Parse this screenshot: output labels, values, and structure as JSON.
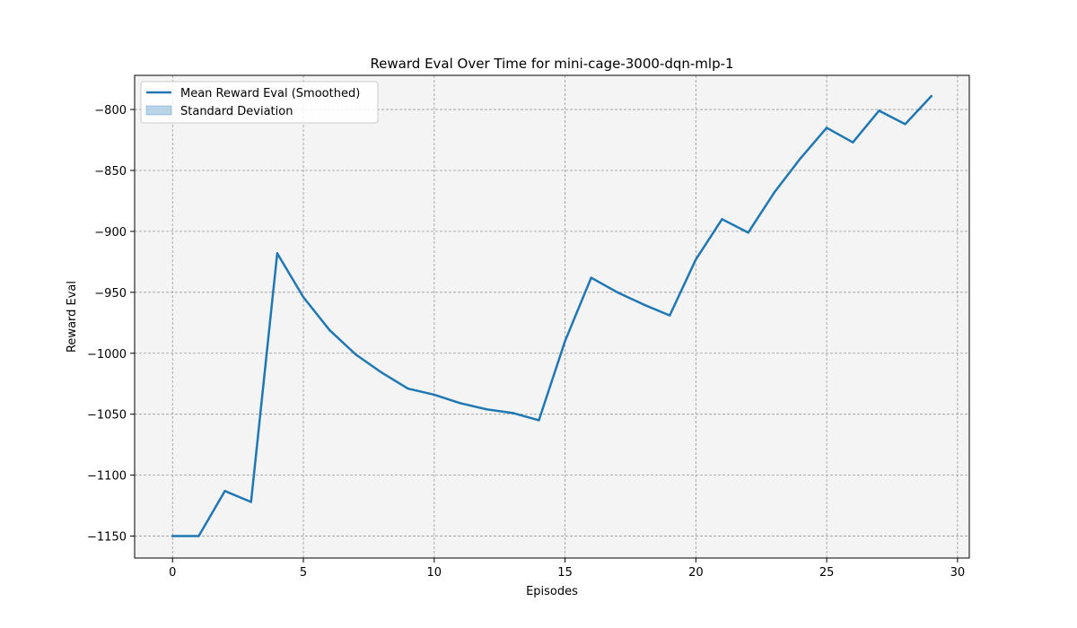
{
  "chart_data": {
    "type": "line",
    "title": "Reward Eval Over Time for mini-cage-3000-dqn-mlp-1",
    "xlabel": "Episodes",
    "ylabel": "Reward Eval",
    "xlim": [
      -1.45,
      30.45
    ],
    "ylim": [
      -1168,
      -772
    ],
    "xticks": [
      0,
      5,
      10,
      15,
      20,
      25,
      30
    ],
    "yticks": [
      -1150,
      -1100,
      -1050,
      -1000,
      -950,
      -900,
      -850,
      -800
    ],
    "xtick_labels": [
      "0",
      "5",
      "10",
      "15",
      "20",
      "25",
      "30"
    ],
    "ytick_labels": [
      "−1150",
      "−1100",
      "−1050",
      "−1000",
      "−950",
      "−900",
      "−850",
      "−800"
    ],
    "grid": true,
    "legend_position": "upper-left",
    "background": "#f4f4f4",
    "series": [
      {
        "name": "Mean Reward Eval (Smoothed)",
        "color": "#1f77b4",
        "x": [
          0,
          1,
          2,
          3,
          4,
          5,
          6,
          7,
          8,
          9,
          10,
          11,
          12,
          13,
          14,
          15,
          16,
          17,
          18,
          19,
          20,
          21,
          22,
          23,
          24,
          25,
          26,
          27,
          28,
          29
        ],
        "values": [
          -1150,
          -1150,
          -1113,
          -1122,
          -918,
          -954,
          -981,
          -1001,
          -1016,
          -1029,
          -1034,
          -1041,
          -1046,
          -1049,
          -1055,
          -990,
          -938,
          -950,
          -960,
          -969,
          -923,
          -890,
          -901,
          -868,
          -840,
          -815,
          -827,
          -801,
          -812,
          -789
        ]
      }
    ],
    "legend": [
      {
        "label": "Mean Reward Eval (Smoothed)",
        "kind": "line",
        "color": "#1f77b4"
      },
      {
        "label": "Standard Deviation",
        "kind": "band",
        "color": "#1f77b4"
      }
    ]
  }
}
